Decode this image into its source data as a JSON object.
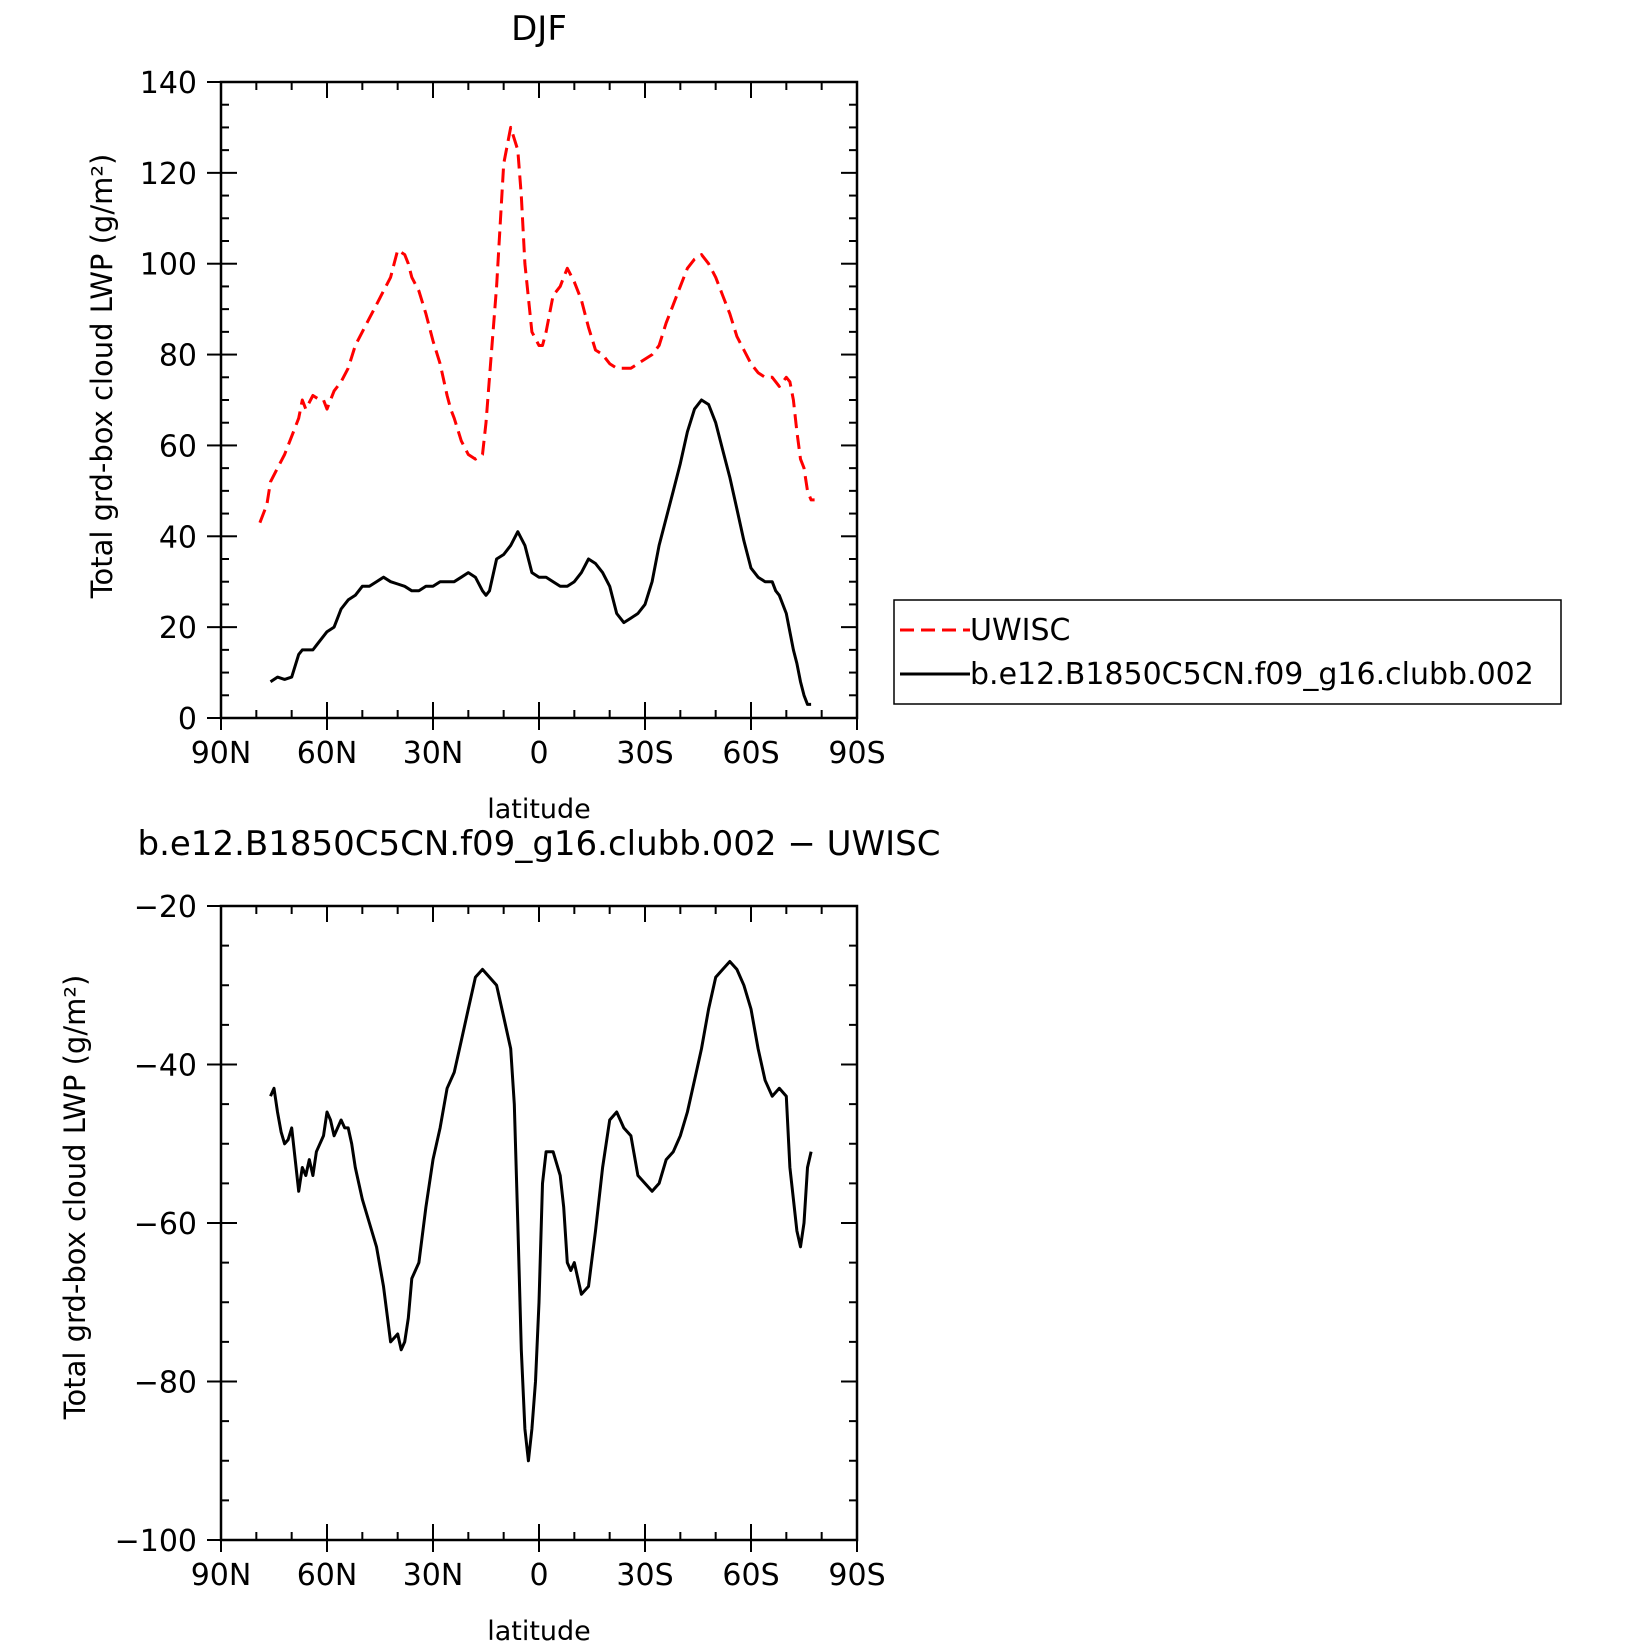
{
  "chart_data": [
    {
      "type": "line",
      "title": "DJF",
      "xlabel": "latitude",
      "ylabel": "Total grd-box cloud LWP (g/m²)",
      "xlim": [
        90,
        -90
      ],
      "ylim": [
        0,
        140
      ],
      "x_ticks": [
        90,
        60,
        30,
        0,
        -30,
        -60,
        -90
      ],
      "x_tick_labels": [
        "90N",
        "60N",
        "30N",
        "0",
        "30S",
        "60S",
        "90S"
      ],
      "y_ticks": [
        0,
        20,
        40,
        60,
        80,
        100,
        120,
        140
      ],
      "y_tick_labels": [
        "0",
        "20",
        "40",
        "60",
        "80",
        "100",
        "120",
        "140"
      ],
      "legend_position": "right",
      "series": [
        {
          "name": "UWISC",
          "color": "#ff0000",
          "dash": "dashed",
          "x": [
            79,
            77,
            76,
            74,
            72,
            70,
            68,
            67,
            66,
            64,
            62,
            61,
            60,
            58,
            56,
            54,
            52,
            50,
            48,
            46,
            44,
            42,
            41,
            40,
            38,
            37,
            36,
            34,
            32,
            30,
            28,
            26,
            25,
            24,
            22,
            20,
            18,
            16,
            15,
            14,
            12,
            10,
            8,
            6,
            5,
            4,
            2,
            0,
            -1,
            -2,
            -4,
            -6,
            -7,
            -8,
            -10,
            -12,
            -14,
            -16,
            -18,
            -20,
            -22,
            -24,
            -26,
            -28,
            -30,
            -32,
            -34,
            -36,
            -38,
            -40,
            -42,
            -44,
            -46,
            -47,
            -48,
            -50,
            -52,
            -54,
            -56,
            -58,
            -60,
            -62,
            -64,
            -66,
            -68,
            -70,
            -71,
            -72,
            -73,
            -74,
            -75,
            -76,
            -77,
            -78
          ],
          "values": [
            43,
            47,
            52,
            55,
            58,
            62,
            66,
            70,
            68,
            71,
            70,
            70,
            68,
            72,
            74,
            77,
            82,
            85,
            88,
            91,
            94,
            97,
            100,
            103,
            102,
            100,
            97,
            94,
            89,
            83,
            78,
            71,
            68,
            66,
            61,
            58,
            57,
            58,
            65,
            75,
            95,
            122,
            130,
            125,
            115,
            100,
            85,
            82,
            82,
            85,
            93,
            95,
            97,
            99,
            96,
            92,
            86,
            81,
            80,
            78,
            77,
            77,
            77,
            78,
            79,
            80,
            82,
            87,
            91,
            95,
            99,
            101,
            102,
            101,
            100,
            97,
            93,
            89,
            84,
            81,
            78,
            76,
            75,
            75,
            73,
            75,
            74,
            70,
            63,
            57,
            55,
            50,
            48,
            48
          ]
        },
        {
          "name": "b.e12.B1850C5CN.f09_g16.clubb.002",
          "color": "#000000",
          "dash": "solid",
          "x": [
            76,
            74,
            72,
            70,
            68,
            67,
            66,
            64,
            63,
            62,
            61,
            60,
            58,
            57,
            56,
            54,
            52,
            50,
            48,
            46,
            44,
            42,
            40,
            38,
            36,
            34,
            32,
            30,
            28,
            26,
            24,
            22,
            20,
            18,
            16,
            15,
            14,
            12,
            10,
            8,
            6,
            4,
            2,
            0,
            -2,
            -4,
            -6,
            -8,
            -10,
            -12,
            -14,
            -16,
            -18,
            -20,
            -22,
            -24,
            -26,
            -28,
            -30,
            -32,
            -34,
            -36,
            -38,
            -40,
            -42,
            -44,
            -46,
            -48,
            -50,
            -52,
            -54,
            -56,
            -58,
            -60,
            -62,
            -64,
            -66,
            -67,
            -68,
            -70,
            -72,
            -73,
            -74,
            -75,
            -76,
            -77
          ],
          "values": [
            8,
            9,
            8.5,
            9,
            14,
            15,
            15,
            15,
            16,
            17,
            18,
            19,
            20,
            22,
            24,
            26,
            27,
            29,
            29,
            30,
            31,
            30,
            29.5,
            29,
            28,
            28,
            29,
            29,
            30,
            30,
            30,
            31,
            32,
            31,
            28,
            27,
            28,
            35,
            36,
            38,
            41,
            38,
            32,
            31,
            31,
            30,
            29,
            29,
            30,
            32,
            35,
            34,
            32,
            29,
            23,
            21,
            22,
            23,
            25,
            30,
            38,
            44,
            50,
            56,
            63,
            68,
            70,
            69,
            65,
            59,
            53,
            46,
            39,
            33,
            31,
            30,
            30,
            28,
            27,
            23,
            15,
            12,
            8,
            5,
            3,
            3
          ]
        }
      ]
    },
    {
      "type": "line",
      "title": "b.e12.B1850C5CN.f09_g16.clubb.002 − UWISC",
      "xlabel": "latitude",
      "ylabel": "Total grd-box cloud LWP (g/m²)",
      "xlim": [
        90,
        -90
      ],
      "ylim": [
        -100,
        -20
      ],
      "x_ticks": [
        90,
        60,
        30,
        0,
        -30,
        -60,
        -90
      ],
      "x_tick_labels": [
        "90N",
        "60N",
        "30N",
        "0",
        "30S",
        "60S",
        "90S"
      ],
      "y_ticks": [
        -100,
        -80,
        -60,
        -40,
        -20
      ],
      "y_tick_labels": [
        "−100",
        "−80",
        "−60",
        "−40",
        "−20"
      ],
      "series": [
        {
          "color": "#000000",
          "dash": "solid",
          "x": [
            76,
            75,
            74,
            73,
            72,
            71,
            70,
            69,
            68,
            67,
            66,
            65,
            64,
            63,
            62,
            61,
            60,
            59,
            58,
            57,
            56,
            55,
            54,
            53,
            52,
            50,
            48,
            46,
            44,
            42,
            40,
            39,
            38,
            37,
            36,
            34,
            32,
            30,
            28,
            26,
            24,
            22,
            20,
            18,
            16,
            14,
            12,
            10,
            8,
            7,
            6,
            5,
            4,
            3,
            2,
            1,
            0,
            -1,
            -2,
            -4,
            -6,
            -7,
            -8,
            -9,
            -10,
            -12,
            -14,
            -16,
            -18,
            -20,
            -22,
            -24,
            -26,
            -28,
            -30,
            -32,
            -34,
            -36,
            -38,
            -40,
            -42,
            -44,
            -46,
            -48,
            -50,
            -52,
            -54,
            -56,
            -58,
            -60,
            -62,
            -64,
            -66,
            -68,
            -70,
            -71,
            -72,
            -73,
            -74,
            -75,
            -76,
            -77
          ],
          "values": [
            -44,
            -43,
            -46,
            -48.5,
            -50,
            -49.5,
            -48,
            -52,
            -56,
            -53,
            -54,
            -52,
            -54,
            -51,
            -50,
            -49,
            -46,
            -47,
            -49,
            -48,
            -47,
            -48,
            -48,
            -50,
            -53,
            -57,
            -60,
            -63,
            -68,
            -75,
            -74,
            -76,
            -75,
            -72,
            -67,
            -65,
            -58,
            -52,
            -48,
            -43,
            -41,
            -37,
            -33,
            -29,
            -28,
            -29,
            -30,
            -34,
            -38,
            -45,
            -60,
            -76,
            -86,
            -90,
            -86,
            -80,
            -70,
            -55,
            -51,
            -51,
            -54,
            -58,
            -65,
            -66,
            -65,
            -69,
            -68,
            -61,
            -53,
            -47,
            -46,
            -48,
            -49,
            -54,
            -55,
            -56,
            -55,
            -52,
            -51,
            -49,
            -46,
            -42,
            -38,
            -33,
            -29,
            -28,
            -27,
            -28,
            -30,
            -33,
            -38,
            -42,
            -44,
            -43,
            -44,
            -53,
            -57,
            -61,
            -63,
            -60,
            -53,
            -51
          ]
        }
      ]
    }
  ]
}
